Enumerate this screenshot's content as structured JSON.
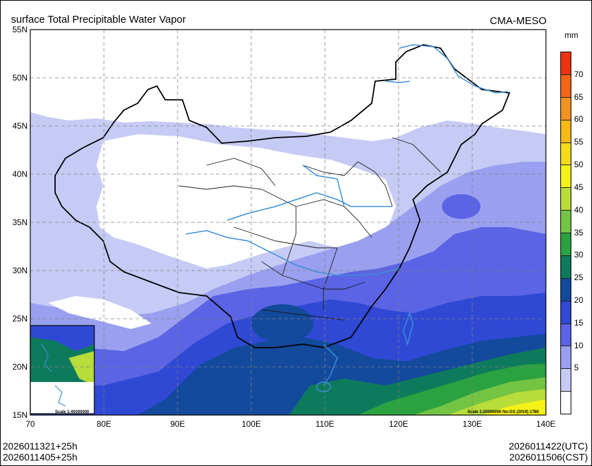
{
  "title": "surface Total Precipitable Water Vapor",
  "model": "CMA-MESO",
  "unit": "mm",
  "axes": {
    "lat_labels": [
      "55N",
      "50N",
      "45N",
      "40N",
      "35N",
      "30N",
      "25N",
      "20N",
      "15N"
    ],
    "lon_labels": [
      "70",
      "80E",
      "90E",
      "100E",
      "110E",
      "120E",
      "130E",
      "140E"
    ]
  },
  "colorbar": {
    "labels": [
      "70",
      "65",
      "60",
      "55",
      "50",
      "45",
      "40",
      "35",
      "30",
      "25",
      "20",
      "15",
      "10",
      "5"
    ],
    "colors": [
      "#ee3311",
      "#f26618",
      "#f39222",
      "#f5b815",
      "#f5db1c",
      "#f5f218",
      "#b8dc3a",
      "#74c444",
      "#2aa240",
      "#0e7a5c",
      "#134a9c",
      "#2f49d4",
      "#5a64e4",
      "#9aa0ef",
      "#c6cbf5",
      "#ffffff"
    ]
  },
  "inset": {
    "scale": "Scale 1:40000000"
  },
  "map_scale": "Scale 1:20000000 No:GS (2019) 1786",
  "footer": {
    "init_utc": "2026011321+25h",
    "init_cst": "2026011405+25h",
    "valid_utc": "2026011422(UTC)",
    "valid_cst": "2026011506(CST)"
  }
}
